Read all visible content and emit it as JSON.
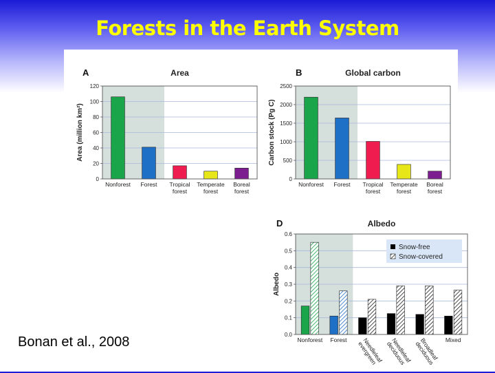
{
  "slide": {
    "title": "Forests in the Earth System",
    "citation": "Bonan et al., 2008"
  },
  "colors": {
    "Nonforest": "#1aa54a",
    "Forest": "#1e6fc6",
    "Tropical forest": "#ee1c4f",
    "Temperate forest": "#e7e619",
    "Boreal forest": "#7d1e90",
    "Needleleaf evergreen": "#000000",
    "Needleleaf deciduous": "#000000",
    "Broadleaf deciduous": "#000000",
    "Mixed": "#000000",
    "shade": "#d5dfdc",
    "title_text": "#ffff00"
  },
  "chart_data": [
    {
      "id": "area",
      "type": "bar",
      "letter": "A",
      "title": "Area",
      "ylabel": "Area (million km²)",
      "ylim": [
        0,
        120
      ],
      "yticks": [
        0,
        20,
        40,
        60,
        80,
        100,
        120
      ],
      "categories": [
        [
          "Nonforest"
        ],
        [
          "Forest"
        ],
        [
          "Tropical",
          "forest"
        ],
        [
          "Temperate",
          "forest"
        ],
        [
          "Boreal",
          "forest"
        ]
      ],
      "color_keys": [
        "Nonforest",
        "Forest",
        "Tropical forest",
        "Temperate forest",
        "Boreal forest"
      ],
      "values": [
        106,
        41,
        17,
        10,
        14
      ],
      "shaded_categories": 2,
      "grid": true
    },
    {
      "id": "carbon",
      "type": "bar",
      "letter": "B",
      "title": "Global carbon",
      "ylabel": "Carbon stock (Pg C)",
      "ylim": [
        0,
        2500
      ],
      "yticks": [
        0,
        500,
        1000,
        1500,
        2000,
        2500
      ],
      "categories": [
        [
          "Nonforest"
        ],
        [
          "Forest"
        ],
        [
          "Tropical",
          "forest"
        ],
        [
          "Temperate",
          "forest"
        ],
        [
          "Boreal",
          "forest"
        ]
      ],
      "color_keys": [
        "Nonforest",
        "Forest",
        "Tropical forest",
        "Temperate forest",
        "Boreal forest"
      ],
      "values": [
        2200,
        1640,
        1010,
        390,
        210
      ],
      "shaded_categories": 2,
      "grid": true
    },
    {
      "id": "albedo",
      "type": "bar",
      "letter": "D",
      "title": "Albedo",
      "ylabel": "Albedo",
      "ylim": [
        0,
        0.6
      ],
      "yticks": [
        "0.0",
        "0.1",
        "0.2",
        "0.3",
        "0.4",
        "0.5",
        "0.6"
      ],
      "categories": [
        [
          "Nonforest"
        ],
        [
          "Forest"
        ],
        [
          "Needleleaf",
          "evergreen"
        ],
        [
          "Needleleaf",
          "deciduous"
        ],
        [
          "Broadleaf",
          "deciduous"
        ],
        [
          "Mixed"
        ]
      ],
      "color_keys": [
        "Nonforest",
        "Forest",
        "Needleleaf evergreen",
        "Needleleaf deciduous",
        "Broadleaf deciduous",
        "Mixed"
      ],
      "series": [
        {
          "name": "Snow-free",
          "values": [
            0.17,
            0.11,
            0.1,
            0.125,
            0.12,
            0.11
          ]
        },
        {
          "name": "Snow-covered",
          "values": [
            0.55,
            0.26,
            0.21,
            0.29,
            0.29,
            0.265
          ]
        }
      ],
      "legend": "top-right",
      "shaded_categories": 2,
      "grid": true
    }
  ]
}
